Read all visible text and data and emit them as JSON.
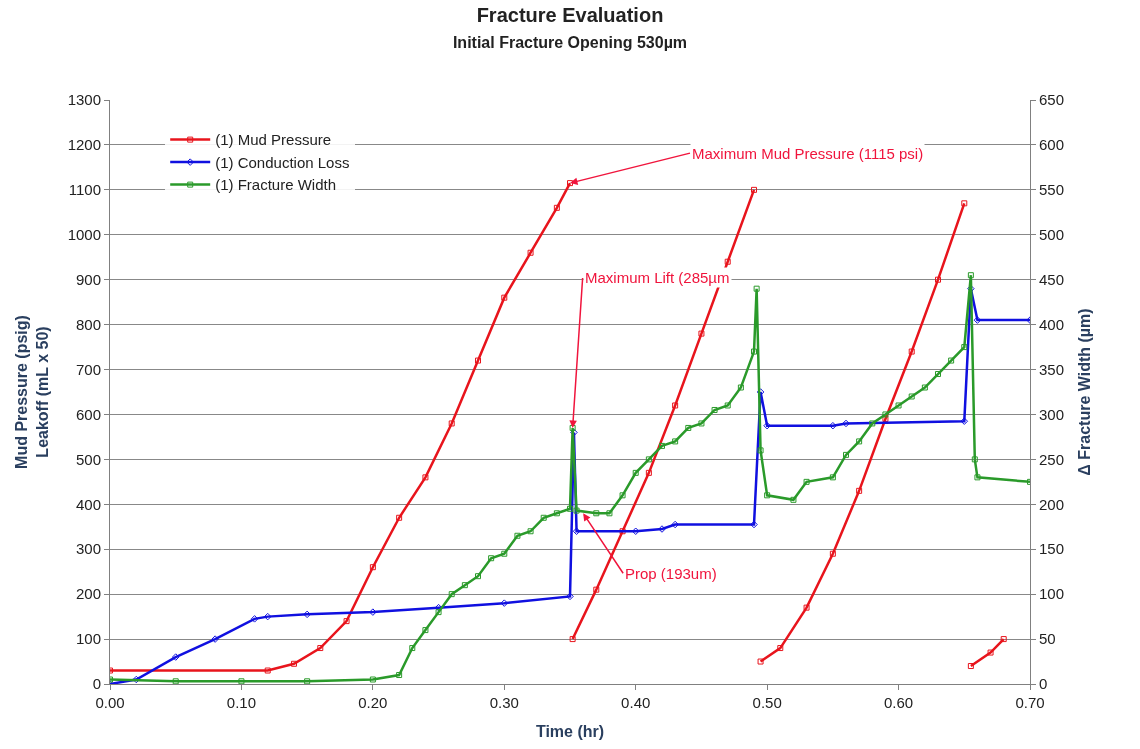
{
  "chart_data": {
    "type": "line",
    "title": "Fracture Evaluation",
    "subtitle": "Initial Fracture Opening 530µm",
    "xlabel": "Time (hr)",
    "ylabel": "Mud Pressure (psig)\nLeakoff (mL x 50)",
    "y2label": "Δ Fracture Width (µm)",
    "xlim": [
      0,
      0.7
    ],
    "xticks": [
      {
        "value": 0,
        "label": "0.00"
      },
      {
        "value": 0.1,
        "label": "0.10"
      },
      {
        "value": 0.2,
        "label": "0.20"
      },
      {
        "value": 0.3,
        "label": "0.30"
      },
      {
        "value": 0.4,
        "label": "0.40"
      },
      {
        "value": 0.5,
        "label": "0.50"
      },
      {
        "value": 0.6,
        "label": "0.60"
      },
      {
        "value": 0.7,
        "label": "0.70"
      }
    ],
    "ylim": [
      0,
      1300
    ],
    "yticks": [
      0,
      100,
      200,
      300,
      400,
      500,
      600,
      700,
      800,
      900,
      1000,
      1100,
      1200,
      1300
    ],
    "y2lim": [
      0,
      650
    ],
    "y2ticks": [
      0,
      50,
      100,
      150,
      200,
      250,
      300,
      350,
      400,
      450,
      500,
      550,
      600,
      650
    ],
    "grid": "y",
    "legend": "top left",
    "series": [
      {
        "name": "(1) Mud Pressure",
        "color": "#e8141c",
        "marker": "square",
        "x": [
          0,
          0.12,
          0.14,
          0.16,
          0.18,
          0.2,
          0.22,
          0.24,
          0.26,
          0.28,
          0.3,
          0.32,
          0.34,
          0.35,
          0.351,
          0.352,
          0.37,
          0.39,
          0.41,
          0.43,
          0.45,
          0.47,
          0.49,
          0.493,
          0.495,
          0.51,
          0.53,
          0.55,
          0.57,
          0.59,
          0.61,
          0.63,
          0.65,
          0.653,
          0.655,
          0.67,
          0.68
        ],
        "values": [
          30,
          30,
          45,
          80,
          140,
          260,
          370,
          460,
          580,
          720,
          860,
          960,
          1060,
          1115,
          null,
          100,
          210,
          340,
          470,
          620,
          780,
          940,
          1100,
          null,
          50,
          80,
          170,
          290,
          430,
          590,
          740,
          900,
          1070,
          null,
          40,
          70,
          100
        ]
      },
      {
        "name": "(1) Conduction Loss",
        "color": "#1010e0",
        "marker": "diamond",
        "x": [
          0,
          0.02,
          0.05,
          0.08,
          0.11,
          0.12,
          0.15,
          0.2,
          0.25,
          0.3,
          0.35,
          0.353,
          0.355,
          0.4,
          0.42,
          0.43,
          0.49,
          0.495,
          0.5,
          0.55,
          0.56,
          0.65,
          0.655,
          0.66,
          0.7
        ],
        "values": [
          0,
          10,
          60,
          100,
          145,
          150,
          155,
          160,
          170,
          180,
          195,
          560,
          340,
          340,
          345,
          355,
          355,
          650,
          575,
          575,
          580,
          585,
          880,
          810,
          810
        ]
      },
      {
        "name": "(1) Fracture Width",
        "color": "#2a9a2a",
        "marker": "square",
        "axis": "y2",
        "x": [
          0,
          0.05,
          0.1,
          0.15,
          0.2,
          0.22,
          0.23,
          0.24,
          0.25,
          0.26,
          0.27,
          0.28,
          0.29,
          0.3,
          0.31,
          0.32,
          0.33,
          0.34,
          0.35,
          0.352,
          0.355,
          0.37,
          0.38,
          0.39,
          0.4,
          0.41,
          0.42,
          0.43,
          0.44,
          0.45,
          0.46,
          0.47,
          0.48,
          0.49,
          0.492,
          0.495,
          0.5,
          0.52,
          0.53,
          0.55,
          0.56,
          0.57,
          0.58,
          0.59,
          0.6,
          0.61,
          0.62,
          0.63,
          0.64,
          0.65,
          0.655,
          0.658,
          0.66,
          0.7
        ],
        "values": [
          5,
          3,
          3,
          3,
          5,
          10,
          40,
          60,
          80,
          100,
          110,
          120,
          140,
          145,
          165,
          170,
          185,
          190,
          195,
          285,
          193,
          190,
          190,
          210,
          235,
          250,
          265,
          270,
          285,
          290,
          305,
          310,
          330,
          370,
          440,
          260,
          210,
          205,
          225,
          230,
          255,
          270,
          290,
          300,
          310,
          320,
          330,
          345,
          360,
          375,
          455,
          250,
          230,
          225
        ]
      }
    ],
    "annotations": [
      {
        "text": "Maximum Mud Pressure (1115 psi)",
        "x": 0.35,
        "y": 1115
      },
      {
        "text": "Maximum Lift (285µm",
        "x": 0.352,
        "y": 570
      },
      {
        "text": "Prop (193um)",
        "x": 0.36,
        "y": 380
      }
    ]
  }
}
